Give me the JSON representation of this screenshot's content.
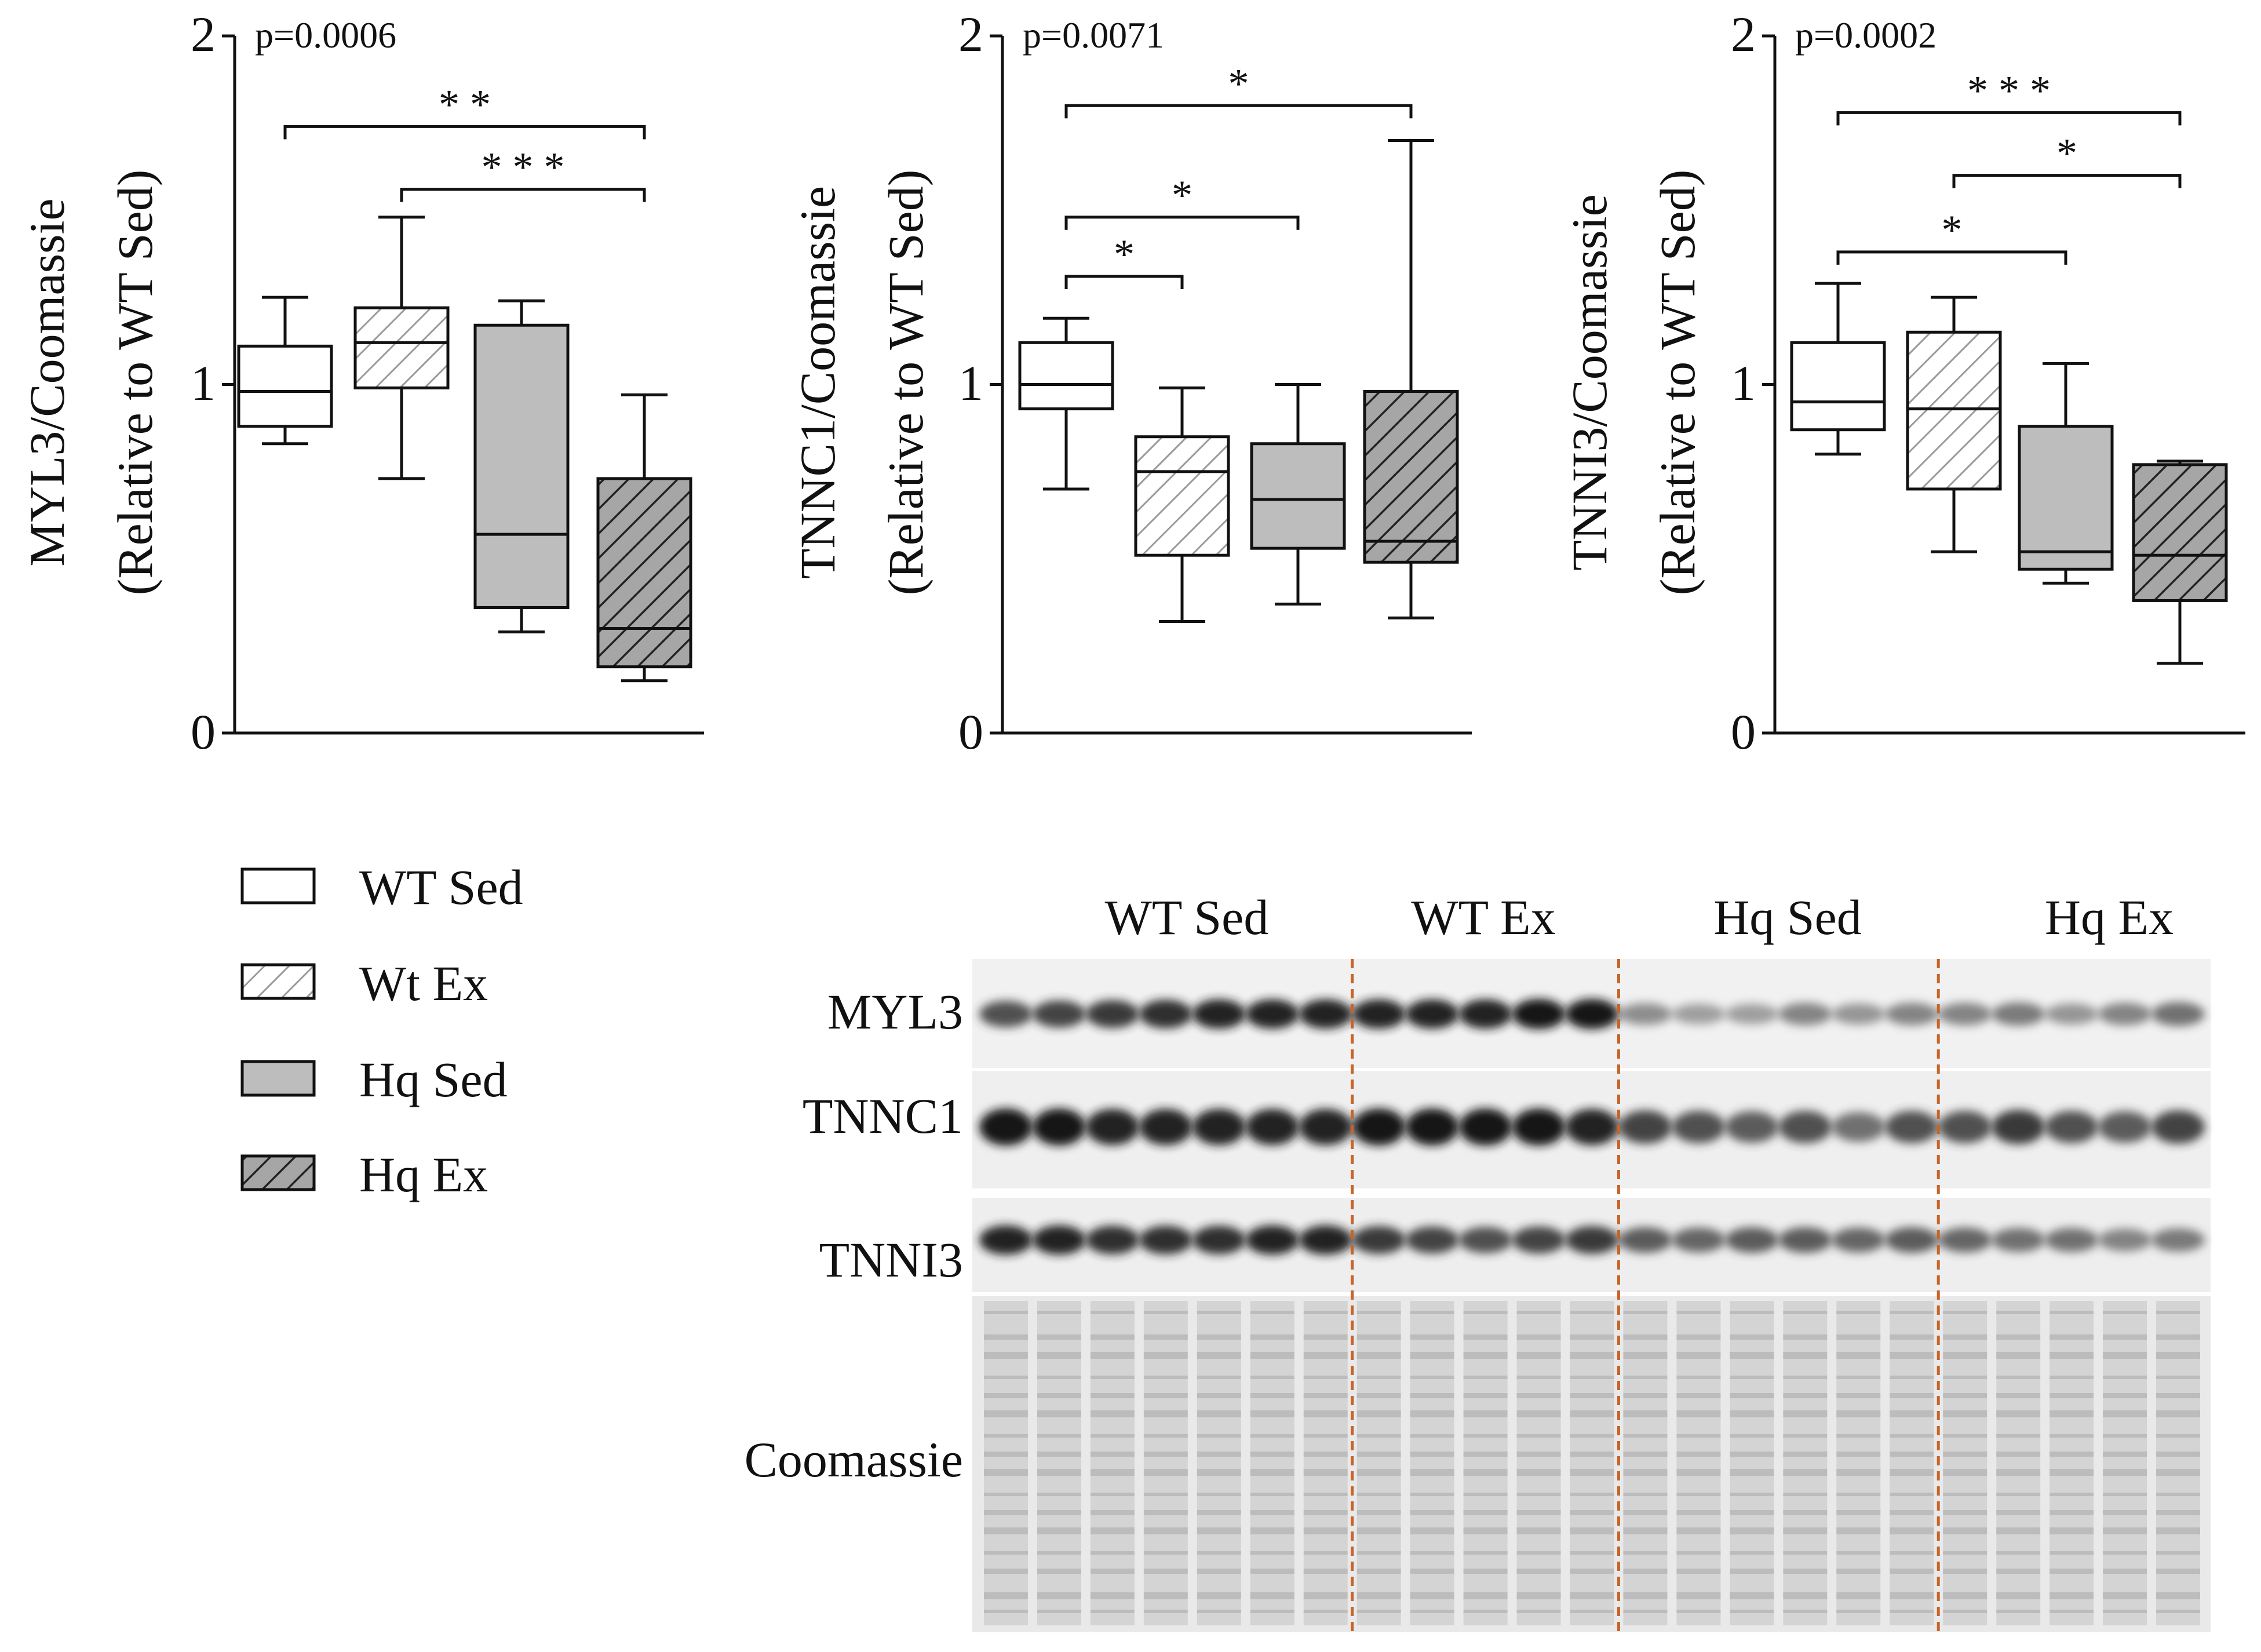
{
  "figure": {
    "colors": {
      "ink": "#111111",
      "box_light": "#ffffff",
      "box_gray": "#bdbdbd",
      "hatch_light": "#9a9a9a",
      "hatch_dark": "#2a2a2a",
      "lane_divider": "#c8642a"
    },
    "legend": {
      "items": [
        {
          "label": "WT Sed",
          "fill": "white"
        },
        {
          "label": "Wt Ex",
          "fill": "hatch-light"
        },
        {
          "label": "Hq Sed",
          "fill": "gray"
        },
        {
          "label": "Hq Ex",
          "fill": "hatch-dark"
        }
      ]
    },
    "blot": {
      "group_labels": [
        "WT Sed",
        "WT Ex",
        "Hq Sed",
        "Hq Ex"
      ],
      "row_labels": [
        "MYL3",
        "TNNC1",
        "TNNI3",
        "Coomassie"
      ],
      "lanes_per_group": [
        7,
        5,
        6,
        5
      ]
    }
  },
  "chart_data": [
    {
      "type": "box",
      "ylabel_line1": "MYL3/Coomassie",
      "ylabel_line2": "(Relative to WT Sed)",
      "pvalue": "p=0.0006",
      "ylim": [
        0,
        2
      ],
      "yticks": [
        "0",
        "1",
        "2"
      ],
      "categories": [
        "WT Sed",
        "Wt Ex",
        "Hq Sed",
        "Hq Ex"
      ],
      "boxes": [
        {
          "min": 0.83,
          "q1": 0.88,
          "median": 0.98,
          "q3": 1.11,
          "max": 1.25,
          "fill": "white"
        },
        {
          "min": 0.73,
          "q1": 0.99,
          "median": 1.12,
          "q3": 1.22,
          "max": 1.48,
          "fill": "hatch-light"
        },
        {
          "min": 0.29,
          "q1": 0.36,
          "median": 0.57,
          "q3": 1.17,
          "max": 1.24,
          "fill": "gray"
        },
        {
          "min": 0.15,
          "q1": 0.19,
          "median": 0.3,
          "q3": 0.73,
          "max": 0.97,
          "fill": "hatch-dark"
        }
      ],
      "brackets": [
        {
          "from": 0,
          "to": 3,
          "level": 1.74,
          "label": "* *"
        },
        {
          "from": 1,
          "to": 3,
          "level": 1.56,
          "label": "* * *"
        }
      ]
    },
    {
      "type": "box",
      "ylabel_line1": "TNNC1/Coomassie",
      "ylabel_line2": "(Relative to WT Sed)",
      "pvalue": "p=0.0071",
      "ylim": [
        0,
        2
      ],
      "yticks": [
        "0",
        "1",
        "2"
      ],
      "categories": [
        "WT Sed",
        "Wt Ex",
        "Hq Sed",
        "Hq Ex"
      ],
      "boxes": [
        {
          "min": 0.7,
          "q1": 0.93,
          "median": 1.0,
          "q3": 1.12,
          "max": 1.19,
          "fill": "white"
        },
        {
          "min": 0.32,
          "q1": 0.51,
          "median": 0.75,
          "q3": 0.85,
          "max": 0.99,
          "fill": "hatch-light"
        },
        {
          "min": 0.37,
          "q1": 0.53,
          "median": 0.67,
          "q3": 0.83,
          "max": 1.0,
          "fill": "gray"
        },
        {
          "min": 0.33,
          "q1": 0.49,
          "median": 0.55,
          "q3": 0.98,
          "max": 1.7,
          "fill": "hatch-dark"
        }
      ],
      "brackets": [
        {
          "from": 0,
          "to": 3,
          "level": 1.8,
          "label": "*"
        },
        {
          "from": 0,
          "to": 2,
          "level": 1.48,
          "label": "*"
        },
        {
          "from": 0,
          "to": 1,
          "level": 1.31,
          "label": "*"
        }
      ]
    },
    {
      "type": "box",
      "ylabel_line1": "TNNI3/Coomassie",
      "ylabel_line2": "(Relative to WT Sed)",
      "pvalue": "p=0.0002",
      "ylim": [
        0,
        2
      ],
      "yticks": [
        "0",
        "1",
        "2"
      ],
      "categories": [
        "WT Sed",
        "Wt Ex",
        "Hq Sed",
        "Hq Ex"
      ],
      "boxes": [
        {
          "min": 0.8,
          "q1": 0.87,
          "median": 0.95,
          "q3": 1.12,
          "max": 1.29,
          "fill": "white"
        },
        {
          "min": 0.52,
          "q1": 0.7,
          "median": 0.93,
          "q3": 1.15,
          "max": 1.25,
          "fill": "hatch-light"
        },
        {
          "min": 0.43,
          "q1": 0.47,
          "median": 0.52,
          "q3": 0.88,
          "max": 1.06,
          "fill": "gray"
        },
        {
          "min": 0.2,
          "q1": 0.38,
          "median": 0.51,
          "q3": 0.77,
          "max": 0.78,
          "fill": "hatch-dark"
        }
      ],
      "brackets": [
        {
          "from": 0,
          "to": 3,
          "level": 1.78,
          "label": "* * *"
        },
        {
          "from": 1,
          "to": 3,
          "level": 1.6,
          "label": "*"
        },
        {
          "from": 0,
          "to": 2,
          "level": 1.38,
          "label": "*"
        }
      ]
    }
  ]
}
